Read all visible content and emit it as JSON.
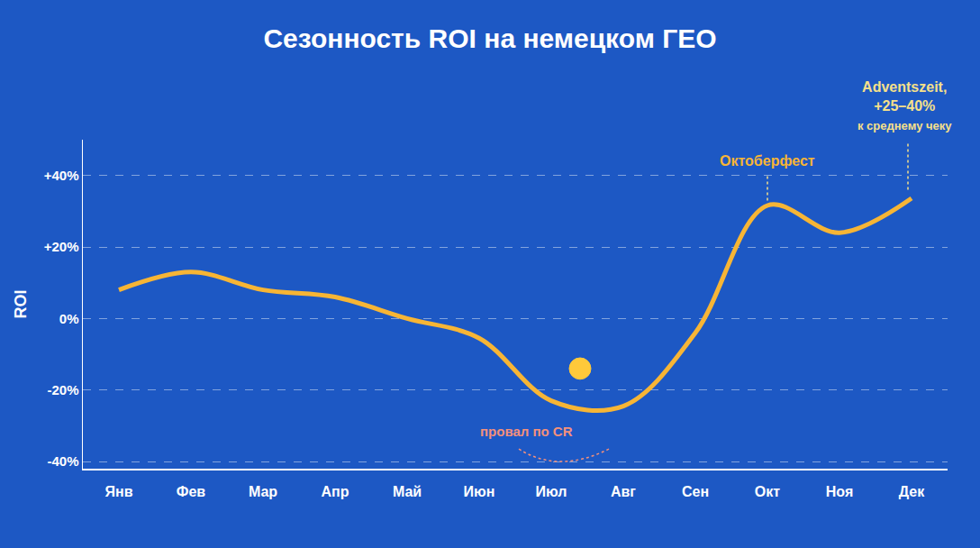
{
  "chart_data": {
    "type": "line",
    "title": "Сезонность ROI на немецком ГЕО",
    "y_label": "ROI",
    "categories": [
      "Янв",
      "Фев",
      "Мар",
      "Апр",
      "Май",
      "Июн",
      "Июл",
      "Авг",
      "Сен",
      "Окт",
      "Ноя",
      "Дек"
    ],
    "values": [
      8,
      13,
      8,
      6,
      0,
      -5.5,
      -23,
      -24.5,
      -4,
      31.6,
      24,
      33.6
    ],
    "color": "#f7b535",
    "ylim": [
      -42,
      50
    ],
    "yticks": [
      {
        "value": -40,
        "label": "-40%"
      },
      {
        "value": -20,
        "label": "-20%"
      },
      {
        "value": 0,
        "label": "0%"
      },
      {
        "value": 20,
        "label": "+20%"
      },
      {
        "value": 40,
        "label": "+40%"
      }
    ],
    "grid": true,
    "annotations": [
      {
        "text": "Октоберфест",
        "category": "Окт"
      },
      {
        "text": [
          "Adventszeit,",
          "+25–40%",
          "к среднему чеку"
        ],
        "category": "Дек"
      },
      {
        "text": "провал по CR",
        "category": "Июл"
      }
    ]
  }
}
